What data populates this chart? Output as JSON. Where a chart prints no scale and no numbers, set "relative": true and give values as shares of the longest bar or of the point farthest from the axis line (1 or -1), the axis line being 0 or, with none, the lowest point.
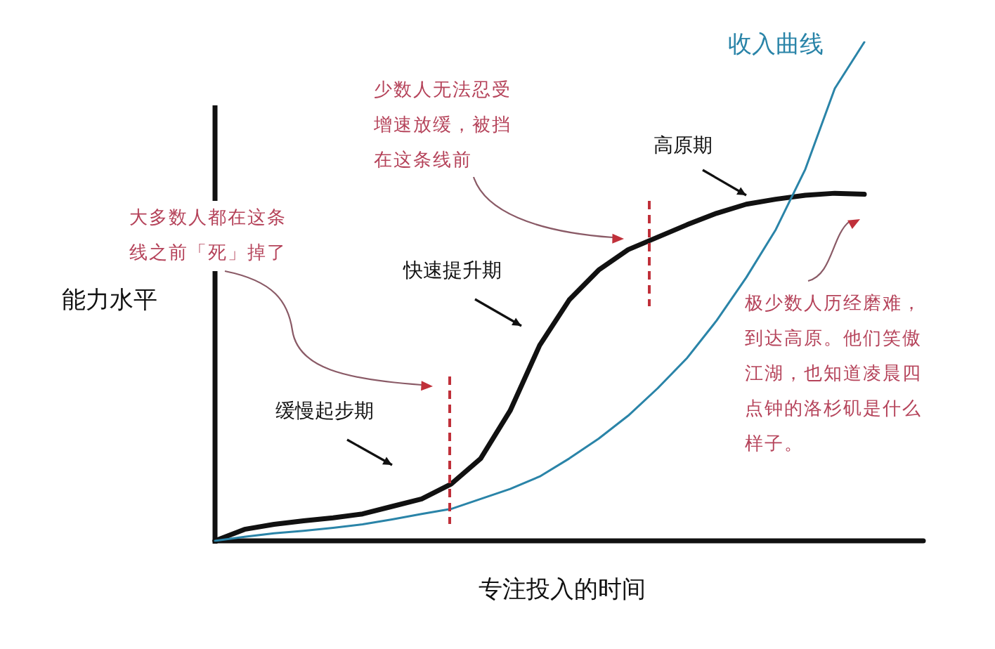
{
  "chart_data": {
    "type": "line",
    "relative": true,
    "marker": "none",
    "xlabel": "专注投入的时间",
    "ylabel": "能力水平",
    "categories": [
      null,
      null,
      null,
      null,
      null,
      null,
      null,
      null,
      null,
      null,
      null,
      null,
      null,
      null,
      null,
      null,
      null,
      null,
      null,
      null,
      null,
      null,
      null,
      null,
      null
    ],
    "series": [
      {
        "color": "#111111",
        "values": [
          0,
          0.023,
          0.033,
          0.04,
          0.046,
          0.054,
          0.069,
          0.084,
          0.114,
          0.165,
          0.261,
          0.392,
          0.483,
          0.543,
          0.584,
          0.609,
          0.634,
          0.657,
          0.675,
          0.685,
          0.693,
          0.697,
          0.695,
          null,
          null
        ]
      },
      {
        "name": "收入曲线",
        "color": "#2a84a8",
        "values": [
          0,
          0.008,
          0.015,
          0.02,
          0.026,
          0.033,
          0.043,
          0.054,
          0.064,
          0.084,
          0.104,
          0.129,
          0.165,
          0.205,
          0.251,
          0.306,
          0.367,
          0.442,
          0.528,
          0.624,
          0.745,
          0.907,
          1,
          null,
          null
        ]
      }
    ],
    "annotations": [
      "缓慢起步期",
      "快速提升期",
      "高原期",
      "大多数人都在这条线之前「死」掉了",
      "少数人无法忍受增速放缓，被挡在这条线前",
      "极少数人历经磨难，到达高原。他们笑傲江湖，也知道凌晨四点钟的洛杉矶是什么样子。"
    ]
  }
}
